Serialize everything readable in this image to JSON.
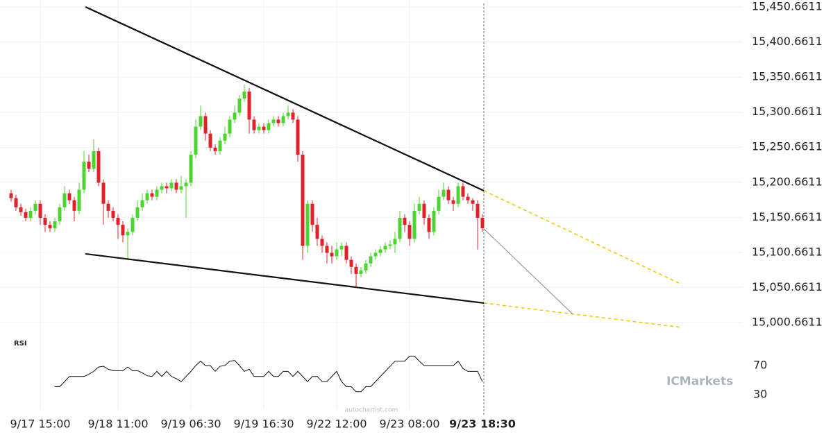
{
  "chart_data": [
    {
      "type": "candlestick",
      "categories": [
        null,
        null,
        null,
        null,
        null,
        null,
        "9/17 15:00",
        null,
        null,
        null,
        null,
        null,
        null,
        null,
        null,
        null,
        null,
        null,
        null,
        null,
        null,
        null,
        "9/18 11:00",
        null,
        null,
        null,
        null,
        null,
        null,
        null,
        null,
        null,
        null,
        null,
        null,
        null,
        null,
        "9/19 06:30",
        null,
        null,
        null,
        null,
        null,
        null,
        null,
        null,
        null,
        null,
        null,
        null,
        null,
        null,
        "9/19 16:30",
        null,
        null,
        null,
        null,
        null,
        null,
        null,
        null,
        null,
        null,
        null,
        null,
        null,
        null,
        "9/22 12:00",
        null,
        null,
        null,
        null,
        null,
        null,
        null,
        null,
        null,
        null,
        null,
        null,
        null,
        null,
        "9/23 08:00",
        null,
        null,
        null,
        null,
        null,
        null,
        null,
        null,
        null,
        null,
        null,
        null,
        null,
        null,
        "9/23 18:30"
      ],
      "open": [
        15185,
        15178,
        15165,
        15158,
        15150,
        15160,
        15170,
        15150,
        15140,
        15135,
        15145,
        15165,
        15185,
        15175,
        15160,
        15190,
        15230,
        15220,
        15245,
        15200,
        15170,
        15160,
        15150,
        15140,
        15125,
        15130,
        15150,
        15165,
        15175,
        15185,
        15180,
        15190,
        15195,
        15192,
        15200,
        15190,
        15195,
        15200,
        15240,
        15280,
        15295,
        15270,
        15250,
        15245,
        15260,
        15270,
        15290,
        15300,
        15320,
        15330,
        15290,
        15275,
        15280,
        15275,
        15285,
        15290,
        15285,
        15295,
        15300,
        15290,
        15240,
        15110,
        15170,
        15140,
        15120,
        15110,
        15100,
        15095,
        15105,
        15110,
        15090,
        15080,
        15070,
        15075,
        15085,
        15095,
        15100,
        15105,
        15110,
        15112,
        15120,
        15150,
        15140,
        15120,
        15160,
        15170,
        15150,
        15130,
        15160,
        15180,
        15190,
        15175,
        15170,
        15195,
        15180,
        15175,
        15170,
        15150
      ],
      "high": [
        15190,
        15183,
        15170,
        15163,
        15165,
        15175,
        15175,
        15155,
        15145,
        15150,
        15170,
        15195,
        15190,
        15180,
        15200,
        15245,
        15240,
        15262,
        15250,
        15205,
        15175,
        15165,
        15155,
        15145,
        15135,
        15155,
        15175,
        15185,
        15190,
        15190,
        15195,
        15200,
        15200,
        15205,
        15205,
        15210,
        15205,
        15245,
        15290,
        15310,
        15300,
        15275,
        15255,
        15265,
        15280,
        15295,
        15310,
        15325,
        15340,
        15335,
        15295,
        15285,
        15285,
        15290,
        15295,
        15295,
        15300,
        15310,
        15305,
        15295,
        15245,
        15175,
        15175,
        15150,
        15125,
        15115,
        15110,
        15115,
        15115,
        15115,
        15095,
        15085,
        15080,
        15090,
        15100,
        15105,
        15110,
        15115,
        15118,
        15130,
        15160,
        15155,
        15145,
        15170,
        15180,
        15175,
        15155,
        15165,
        15190,
        15200,
        15195,
        15180,
        15200,
        15200,
        15185,
        15178,
        15175,
        15155
      ],
      "low": [
        15173,
        15160,
        15153,
        15145,
        15145,
        15155,
        15140,
        15130,
        15130,
        15130,
        15140,
        15160,
        15170,
        15145,
        15155,
        15185,
        15215,
        15215,
        15195,
        15140,
        15150,
        15145,
        15120,
        15115,
        15090,
        15125,
        15145,
        15160,
        15170,
        15175,
        15175,
        15185,
        15185,
        15188,
        15185,
        15185,
        15150,
        15195,
        15235,
        15275,
        15260,
        15245,
        15240,
        15240,
        15255,
        15265,
        15285,
        15295,
        15315,
        15270,
        15270,
        15270,
        15270,
        15270,
        15280,
        15280,
        15280,
        15290,
        15285,
        15230,
        15090,
        15100,
        15130,
        15110,
        15100,
        15085,
        15085,
        15090,
        15095,
        15085,
        15070,
        15052,
        15065,
        15070,
        15080,
        15090,
        15095,
        15100,
        15105,
        15100,
        15115,
        15130,
        15110,
        15115,
        15155,
        15140,
        15120,
        15125,
        15155,
        15175,
        15170,
        15160,
        15165,
        15175,
        15170,
        15160,
        15105,
        15130
      ],
      "close": [
        15178,
        15165,
        15158,
        15150,
        15160,
        15170,
        15150,
        15140,
        15135,
        15145,
        15165,
        15185,
        15175,
        15160,
        15190,
        15230,
        15220,
        15245,
        15200,
        15170,
        15160,
        15150,
        15140,
        15125,
        15130,
        15150,
        15165,
        15175,
        15185,
        15180,
        15190,
        15195,
        15192,
        15200,
        15190,
        15195,
        15200,
        15240,
        15280,
        15295,
        15270,
        15250,
        15245,
        15260,
        15270,
        15290,
        15300,
        15320,
        15330,
        15290,
        15275,
        15280,
        15275,
        15285,
        15290,
        15285,
        15295,
        15300,
        15290,
        15240,
        15110,
        15170,
        15140,
        15120,
        15110,
        15100,
        15095,
        15105,
        15110,
        15090,
        15080,
        15070,
        15075,
        15085,
        15095,
        15100,
        15105,
        15110,
        15112,
        15120,
        15150,
        15140,
        15120,
        15160,
        15170,
        15150,
        15130,
        15160,
        15180,
        15190,
        15175,
        15170,
        15195,
        15180,
        15175,
        15170,
        15150,
        15135
      ],
      "up_color": "#4cd430",
      "down_color": "#e0222a",
      "ylim": [
        14985.8,
        15460.55
      ],
      "yticks": [
        {
          "value": 15450.6611,
          "label": "15,450.6611"
        },
        {
          "value": 15400.6611,
          "label": "15,400.6611"
        },
        {
          "value": 15350.6611,
          "label": "15,350.6611"
        },
        {
          "value": 15300.6611,
          "label": "15,300.6611"
        },
        {
          "value": 15250.6611,
          "label": "15,250.6611"
        },
        {
          "value": 15200.6611,
          "label": "15,200.6611"
        },
        {
          "value": 15150.6611,
          "label": "15,150.6611"
        },
        {
          "value": 15100.6611,
          "label": "15,100.6611"
        },
        {
          "value": 15050.6611,
          "label": "15,050.6611"
        },
        {
          "value": 15000.6611,
          "label": "15,000.6611"
        }
      ],
      "grid": true,
      "lines": [
        {
          "x": [
            15.3,
            97.3
          ],
          "y": [
            15450.7,
            15188.6
          ],
          "color": "#111111",
          "dashed": false
        },
        {
          "x": [
            15.3,
            97.3
          ],
          "y": [
            15098.6,
            15028.4
          ],
          "color": "#111111",
          "dashed": false
        },
        {
          "x": [
            97.3,
            138
          ],
          "y": [
            15188.6,
            15055
          ],
          "color": "#f5c400",
          "dashed": true
        },
        {
          "x": [
            97.3,
            138
          ],
          "y": [
            15028.4,
            14993.7
          ],
          "color": "#f5c400",
          "dashed": true
        },
        {
          "x": [
            97.3,
            115.6
          ],
          "y": [
            15134.2,
            15012.5
          ],
          "color": "#888888",
          "dashed": false
        }
      ],
      "watermark": "autochartist.com",
      "logo": "ICMarkets"
    },
    {
      "type": "line",
      "title": "RSI",
      "color": "#111111",
      "values": [
        null,
        null,
        null,
        null,
        null,
        null,
        null,
        null,
        null,
        41,
        41,
        48,
        55,
        55,
        55,
        55,
        58,
        62,
        68,
        69,
        65,
        63,
        63,
        63,
        68,
        63,
        63,
        60,
        56,
        55,
        62,
        55,
        62,
        55,
        52,
        48,
        55,
        62,
        70,
        76,
        70,
        70,
        62,
        69,
        70,
        76,
        77,
        70,
        62,
        65,
        55,
        55,
        55,
        62,
        55,
        55,
        62,
        62,
        55,
        62,
        55,
        48,
        55,
        55,
        48,
        48,
        55,
        62,
        48,
        41,
        41,
        34,
        34,
        41,
        41,
        48,
        55,
        62,
        69,
        76,
        76,
        76,
        83,
        83,
        76,
        70,
        70,
        70,
        70,
        70,
        70,
        70,
        76,
        66,
        62,
        62,
        62,
        48
      ],
      "ylim": [
        10,
        110
      ],
      "yticks": [
        30,
        70
      ]
    }
  ]
}
